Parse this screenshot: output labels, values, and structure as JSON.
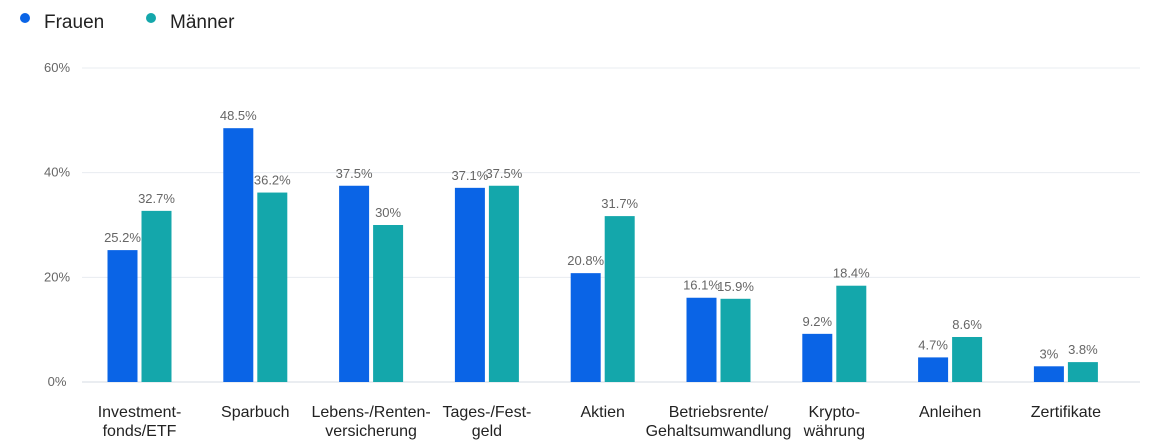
{
  "legend": [
    {
      "name": "Frauen",
      "color": "#0a64e6"
    },
    {
      "name": "Männer",
      "color": "#14a7ab"
    }
  ],
  "chart_data": {
    "type": "bar",
    "categories": [
      [
        "Investment-",
        "fonds/ETF"
      ],
      [
        "Sparbuch"
      ],
      [
        "Lebens-/Renten-",
        "versicherung"
      ],
      [
        "Tages-/Fest-",
        "geld"
      ],
      [
        "Aktien"
      ],
      [
        "Betriebsrente/",
        "Gehaltsumwandlung"
      ],
      [
        "Krypto-",
        "währung"
      ],
      [
        "Anleihen"
      ],
      [
        "Zertifikate"
      ]
    ],
    "series": [
      {
        "name": "Frauen",
        "color": "#0a64e6",
        "values": [
          25.2,
          48.5,
          37.5,
          37.1,
          20.8,
          16.1,
          9.2,
          4.7,
          3
        ],
        "labels": [
          "25.2%",
          "48.5%",
          "37.5%",
          "37.1%",
          "20.8%",
          "16.1%",
          "9.2%",
          "4.7%",
          "3%"
        ]
      },
      {
        "name": "Männer",
        "color": "#14a7ab",
        "values": [
          32.7,
          36.2,
          30,
          37.5,
          31.7,
          15.9,
          18.4,
          8.6,
          3.8
        ],
        "labels": [
          "32.7%",
          "36.2%",
          "30%",
          "37.5%",
          "31.7%",
          "15.9%",
          "18.4%",
          "8.6%",
          "3.8%"
        ]
      }
    ],
    "yticks": [
      {
        "value": 0,
        "label": "0%"
      },
      {
        "value": 20,
        "label": "20%"
      },
      {
        "value": 40,
        "label": "40%"
      },
      {
        "value": 60,
        "label": "60%"
      }
    ],
    "ylim": [
      0,
      60
    ],
    "grid": true,
    "legend_position": "top-left"
  }
}
